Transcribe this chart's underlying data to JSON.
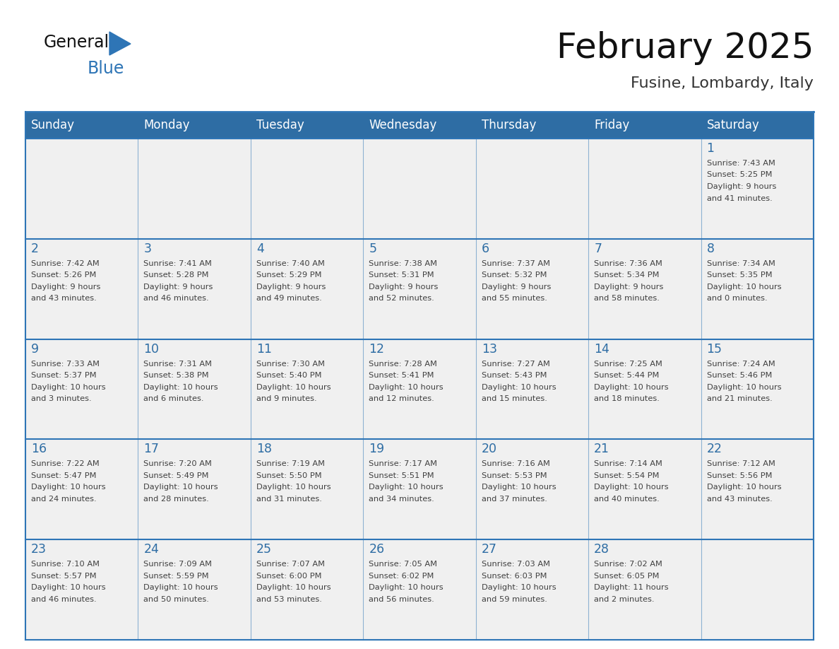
{
  "title": "February 2025",
  "subtitle": "Fusine, Lombardy, Italy",
  "days_of_week": [
    "Sunday",
    "Monday",
    "Tuesday",
    "Wednesday",
    "Thursday",
    "Friday",
    "Saturday"
  ],
  "header_bg": "#2E6DA4",
  "header_text": "#FFFFFF",
  "cell_bg": "#F0F0F0",
  "border_color": "#2E75B6",
  "day_num_color": "#2E6DA4",
  "text_color": "#404040",
  "logo_blue": "#2E75B6",
  "logo_black": "#111111",
  "weeks": [
    [
      {
        "day": null,
        "info": null
      },
      {
        "day": null,
        "info": null
      },
      {
        "day": null,
        "info": null
      },
      {
        "day": null,
        "info": null
      },
      {
        "day": null,
        "info": null
      },
      {
        "day": null,
        "info": null
      },
      {
        "day": 1,
        "info": "Sunrise: 7:43 AM\nSunset: 5:25 PM\nDaylight: 9 hours\nand 41 minutes."
      }
    ],
    [
      {
        "day": 2,
        "info": "Sunrise: 7:42 AM\nSunset: 5:26 PM\nDaylight: 9 hours\nand 43 minutes."
      },
      {
        "day": 3,
        "info": "Sunrise: 7:41 AM\nSunset: 5:28 PM\nDaylight: 9 hours\nand 46 minutes."
      },
      {
        "day": 4,
        "info": "Sunrise: 7:40 AM\nSunset: 5:29 PM\nDaylight: 9 hours\nand 49 minutes."
      },
      {
        "day": 5,
        "info": "Sunrise: 7:38 AM\nSunset: 5:31 PM\nDaylight: 9 hours\nand 52 minutes."
      },
      {
        "day": 6,
        "info": "Sunrise: 7:37 AM\nSunset: 5:32 PM\nDaylight: 9 hours\nand 55 minutes."
      },
      {
        "day": 7,
        "info": "Sunrise: 7:36 AM\nSunset: 5:34 PM\nDaylight: 9 hours\nand 58 minutes."
      },
      {
        "day": 8,
        "info": "Sunrise: 7:34 AM\nSunset: 5:35 PM\nDaylight: 10 hours\nand 0 minutes."
      }
    ],
    [
      {
        "day": 9,
        "info": "Sunrise: 7:33 AM\nSunset: 5:37 PM\nDaylight: 10 hours\nand 3 minutes."
      },
      {
        "day": 10,
        "info": "Sunrise: 7:31 AM\nSunset: 5:38 PM\nDaylight: 10 hours\nand 6 minutes."
      },
      {
        "day": 11,
        "info": "Sunrise: 7:30 AM\nSunset: 5:40 PM\nDaylight: 10 hours\nand 9 minutes."
      },
      {
        "day": 12,
        "info": "Sunrise: 7:28 AM\nSunset: 5:41 PM\nDaylight: 10 hours\nand 12 minutes."
      },
      {
        "day": 13,
        "info": "Sunrise: 7:27 AM\nSunset: 5:43 PM\nDaylight: 10 hours\nand 15 minutes."
      },
      {
        "day": 14,
        "info": "Sunrise: 7:25 AM\nSunset: 5:44 PM\nDaylight: 10 hours\nand 18 minutes."
      },
      {
        "day": 15,
        "info": "Sunrise: 7:24 AM\nSunset: 5:46 PM\nDaylight: 10 hours\nand 21 minutes."
      }
    ],
    [
      {
        "day": 16,
        "info": "Sunrise: 7:22 AM\nSunset: 5:47 PM\nDaylight: 10 hours\nand 24 minutes."
      },
      {
        "day": 17,
        "info": "Sunrise: 7:20 AM\nSunset: 5:49 PM\nDaylight: 10 hours\nand 28 minutes."
      },
      {
        "day": 18,
        "info": "Sunrise: 7:19 AM\nSunset: 5:50 PM\nDaylight: 10 hours\nand 31 minutes."
      },
      {
        "day": 19,
        "info": "Sunrise: 7:17 AM\nSunset: 5:51 PM\nDaylight: 10 hours\nand 34 minutes."
      },
      {
        "day": 20,
        "info": "Sunrise: 7:16 AM\nSunset: 5:53 PM\nDaylight: 10 hours\nand 37 minutes."
      },
      {
        "day": 21,
        "info": "Sunrise: 7:14 AM\nSunset: 5:54 PM\nDaylight: 10 hours\nand 40 minutes."
      },
      {
        "day": 22,
        "info": "Sunrise: 7:12 AM\nSunset: 5:56 PM\nDaylight: 10 hours\nand 43 minutes."
      }
    ],
    [
      {
        "day": 23,
        "info": "Sunrise: 7:10 AM\nSunset: 5:57 PM\nDaylight: 10 hours\nand 46 minutes."
      },
      {
        "day": 24,
        "info": "Sunrise: 7:09 AM\nSunset: 5:59 PM\nDaylight: 10 hours\nand 50 minutes."
      },
      {
        "day": 25,
        "info": "Sunrise: 7:07 AM\nSunset: 6:00 PM\nDaylight: 10 hours\nand 53 minutes."
      },
      {
        "day": 26,
        "info": "Sunrise: 7:05 AM\nSunset: 6:02 PM\nDaylight: 10 hours\nand 56 minutes."
      },
      {
        "day": 27,
        "info": "Sunrise: 7:03 AM\nSunset: 6:03 PM\nDaylight: 10 hours\nand 59 minutes."
      },
      {
        "day": 28,
        "info": "Sunrise: 7:02 AM\nSunset: 6:05 PM\nDaylight: 11 hours\nand 2 minutes."
      },
      {
        "day": null,
        "info": null
      }
    ]
  ]
}
